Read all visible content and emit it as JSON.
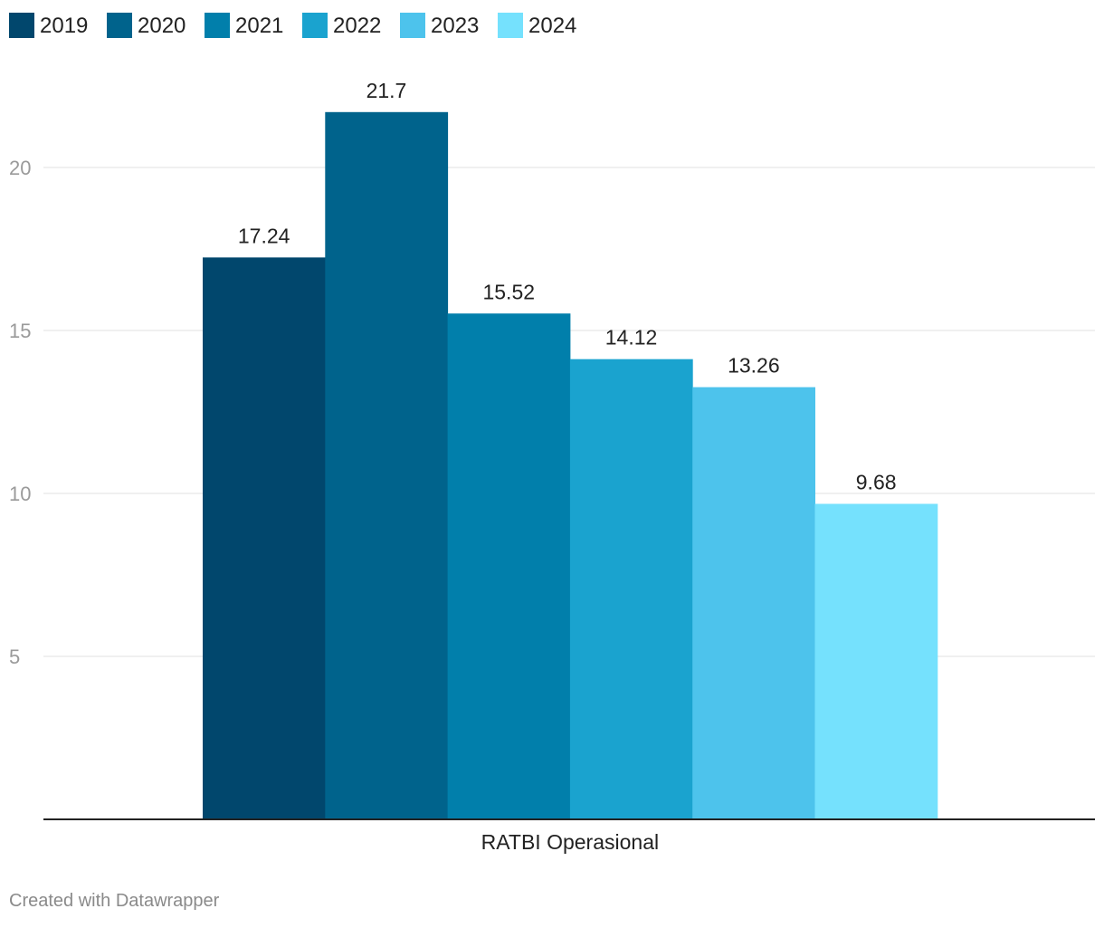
{
  "chart_data": {
    "type": "bar",
    "categories": [
      "RATBI Operasional"
    ],
    "series": [
      {
        "name": "2019",
        "values": [
          17.24
        ],
        "color": "#01476d"
      },
      {
        "name": "2020",
        "values": [
          21.7
        ],
        "color": "#00638c"
      },
      {
        "name": "2021",
        "values": [
          15.52
        ],
        "color": "#017fab"
      },
      {
        "name": "2022",
        "values": [
          14.12
        ],
        "color": "#1aa3cf"
      },
      {
        "name": "2023",
        "values": [
          13.26
        ],
        "color": "#4dc3ec"
      },
      {
        "name": "2024",
        "values": [
          9.68
        ],
        "color": "#75e1fd"
      }
    ],
    "value_labels": [
      "17.24",
      "21.7",
      "15.52",
      "14.12",
      "13.26",
      "9.68"
    ],
    "y_ticks": [
      5,
      10,
      15,
      20
    ],
    "y_tick_labels": [
      "5",
      "10",
      "15",
      "20"
    ],
    "ylim": [
      0,
      22.5
    ],
    "grid": true,
    "legend": "top-left",
    "title": "",
    "xlabel": "",
    "ylabel": ""
  },
  "footer": {
    "credit": "Created with Datawrapper"
  },
  "colors": {
    "gridline": "#e0e0e0",
    "baseline": "#222222",
    "tick_text": "#9a9a9a",
    "label_text": "#222222"
  }
}
